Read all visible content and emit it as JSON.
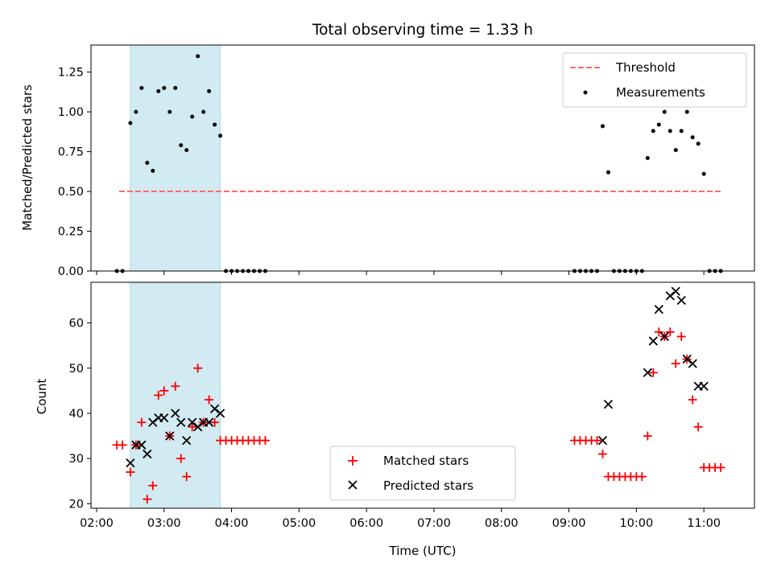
{
  "chart_data": [
    {
      "type": "scatter",
      "title": "Total observing time = 1.33 h",
      "xlabel": "",
      "ylabel": "Matched/Predicted stars",
      "ylim": [
        0,
        1.42
      ],
      "yticks": [
        "0.00",
        "0.25",
        "0.50",
        "0.75",
        "1.00",
        "1.25"
      ],
      "shaded_span": [
        "02:30",
        "03:50"
      ],
      "shade_color": "#add8e6",
      "legend": {
        "placement": "top-right",
        "threshold_label": "Threshold",
        "measurements_label": "Measurements"
      },
      "threshold": {
        "value": 0.5,
        "x_range": [
          "02:20",
          "11:15"
        ],
        "color": "#ff6b6b"
      },
      "series": [
        {
          "name": "Measurements",
          "color": "#000000",
          "points": [
            [
              "02:18",
              0
            ],
            [
              "02:23",
              0
            ],
            [
              "02:30",
              0.93
            ],
            [
              "02:35",
              1.0
            ],
            [
              "02:40",
              1.15
            ],
            [
              "02:45",
              0.68
            ],
            [
              "02:50",
              0.63
            ],
            [
              "02:55",
              1.13
            ],
            [
              "03:00",
              1.15
            ],
            [
              "03:05",
              1.0
            ],
            [
              "03:10",
              1.15
            ],
            [
              "03:15",
              0.79
            ],
            [
              "03:20",
              0.76
            ],
            [
              "03:25",
              0.97
            ],
            [
              "03:30",
              1.35
            ],
            [
              "03:35",
              1.0
            ],
            [
              "03:40",
              1.13
            ],
            [
              "03:45",
              0.92
            ],
            [
              "03:50",
              0.85
            ],
            [
              "03:55",
              0
            ],
            [
              "04:00",
              0
            ],
            [
              "04:05",
              0
            ],
            [
              "04:10",
              0
            ],
            [
              "04:15",
              0
            ],
            [
              "04:20",
              0
            ],
            [
              "04:25",
              0
            ],
            [
              "04:30",
              0
            ],
            [
              "09:05",
              0
            ],
            [
              "09:10",
              0
            ],
            [
              "09:15",
              0
            ],
            [
              "09:20",
              0
            ],
            [
              "09:25",
              0
            ],
            [
              "09:30",
              0.91
            ],
            [
              "09:35",
              0.62
            ],
            [
              "09:40",
              0
            ],
            [
              "09:45",
              0
            ],
            [
              "09:50",
              0
            ],
            [
              "09:55",
              0
            ],
            [
              "10:00",
              0
            ],
            [
              "10:05",
              0
            ],
            [
              "10:10",
              0.71
            ],
            [
              "10:15",
              0.88
            ],
            [
              "10:20",
              0.92
            ],
            [
              "10:25",
              1.0
            ],
            [
              "10:30",
              0.88
            ],
            [
              "10:35",
              0.76
            ],
            [
              "10:40",
              0.88
            ],
            [
              "10:45",
              1.0
            ],
            [
              "10:50",
              0.84
            ],
            [
              "10:55",
              0.8
            ],
            [
              "11:00",
              0.61
            ],
            [
              "11:05",
              0
            ],
            [
              "11:10",
              0
            ],
            [
              "11:15",
              0
            ]
          ]
        }
      ]
    },
    {
      "type": "scatter",
      "title": "",
      "xlabel": "Time (UTC)",
      "ylabel": "Count",
      "ylim": [
        19,
        69
      ],
      "yticks": [
        "20",
        "30",
        "40",
        "50",
        "60"
      ],
      "xticks": [
        "02:00",
        "03:00",
        "04:00",
        "05:00",
        "06:00",
        "07:00",
        "08:00",
        "09:00",
        "10:00",
        "11:00"
      ],
      "xlim": [
        "01:55",
        "11:45"
      ],
      "shaded_span": [
        "02:30",
        "03:50"
      ],
      "legend": {
        "placement": "bottom-center",
        "matched_label": "Matched stars",
        "predicted_label": "Predicted stars"
      },
      "series": [
        {
          "name": "Matched stars",
          "marker": "plus",
          "color": "#ff0000",
          "points": [
            [
              "02:18",
              33
            ],
            [
              "02:23",
              33
            ],
            [
              "02:30",
              27
            ],
            [
              "02:35",
              33
            ],
            [
              "02:40",
              38
            ],
            [
              "02:45",
              21
            ],
            [
              "02:50",
              24
            ],
            [
              "02:55",
              44
            ],
            [
              "03:00",
              45
            ],
            [
              "03:05",
              35
            ],
            [
              "03:10",
              46
            ],
            [
              "03:15",
              30
            ],
            [
              "03:20",
              26
            ],
            [
              "03:25",
              37
            ],
            [
              "03:30",
              50
            ],
            [
              "03:35",
              38
            ],
            [
              "03:40",
              43
            ],
            [
              "03:45",
              38
            ],
            [
              "03:50",
              34
            ],
            [
              "03:55",
              34
            ],
            [
              "04:00",
              34
            ],
            [
              "04:05",
              34
            ],
            [
              "04:10",
              34
            ],
            [
              "04:15",
              34
            ],
            [
              "04:20",
              34
            ],
            [
              "04:25",
              34
            ],
            [
              "04:30",
              34
            ],
            [
              "09:05",
              34
            ],
            [
              "09:10",
              34
            ],
            [
              "09:15",
              34
            ],
            [
              "09:20",
              34
            ],
            [
              "09:25",
              34
            ],
            [
              "09:30",
              31
            ],
            [
              "09:35",
              26
            ],
            [
              "09:40",
              26
            ],
            [
              "09:45",
              26
            ],
            [
              "09:50",
              26
            ],
            [
              "09:55",
              26
            ],
            [
              "10:00",
              26
            ],
            [
              "10:05",
              26
            ],
            [
              "10:10",
              35
            ],
            [
              "10:15",
              49
            ],
            [
              "10:20",
              58
            ],
            [
              "10:25",
              57
            ],
            [
              "10:30",
              58
            ],
            [
              "10:35",
              51
            ],
            [
              "10:40",
              57
            ],
            [
              "10:45",
              52
            ],
            [
              "10:50",
              43
            ],
            [
              "10:55",
              37
            ],
            [
              "11:00",
              28
            ],
            [
              "11:05",
              28
            ],
            [
              "11:10",
              28
            ],
            [
              "11:15",
              28
            ]
          ]
        },
        {
          "name": "Predicted stars",
          "marker": "x",
          "color": "#000000",
          "points": [
            [
              "02:30",
              29
            ],
            [
              "02:35",
              33
            ],
            [
              "02:40",
              33
            ],
            [
              "02:45",
              31
            ],
            [
              "02:50",
              38
            ],
            [
              "02:55",
              39
            ],
            [
              "03:00",
              39
            ],
            [
              "03:05",
              35
            ],
            [
              "03:10",
              40
            ],
            [
              "03:15",
              38
            ],
            [
              "03:20",
              34
            ],
            [
              "03:25",
              38
            ],
            [
              "03:30",
              37
            ],
            [
              "03:35",
              38
            ],
            [
              "03:40",
              38
            ],
            [
              "03:45",
              41
            ],
            [
              "03:50",
              40
            ],
            [
              "09:30",
              34
            ],
            [
              "09:35",
              42
            ],
            [
              "10:10",
              49
            ],
            [
              "10:15",
              56
            ],
            [
              "10:20",
              63
            ],
            [
              "10:25",
              57
            ],
            [
              "10:30",
              66
            ],
            [
              "10:35",
              67
            ],
            [
              "10:40",
              65
            ],
            [
              "10:45",
              52
            ],
            [
              "10:50",
              51
            ],
            [
              "10:55",
              46
            ],
            [
              "11:00",
              46
            ]
          ]
        }
      ]
    }
  ]
}
